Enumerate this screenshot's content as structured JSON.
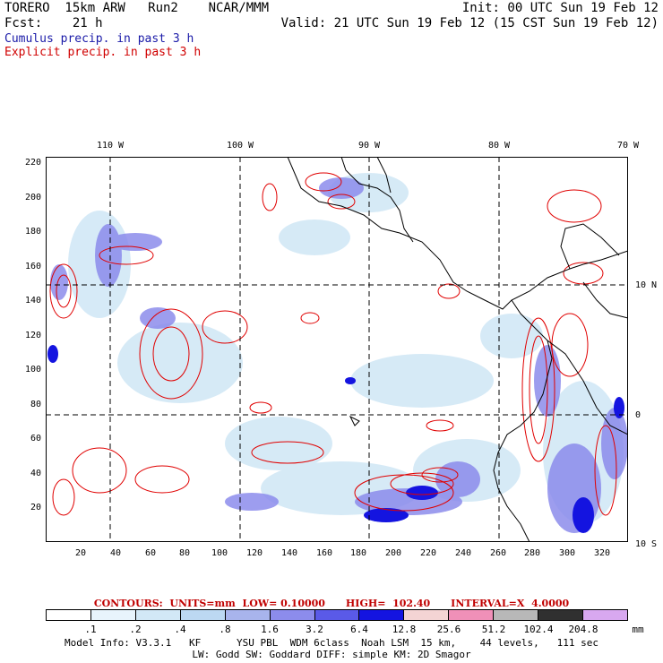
{
  "header": {
    "line1_left": "TORERO  15km ARW   Run2    NCAR/MMM",
    "line1_right": "Init: 00 UTC Sun 19 Feb 12",
    "line2_left": "Fcst:    21 h",
    "line2_right": "Valid: 21 UTC Sun 19 Feb 12 (15 CST Sun 19 Feb 12)",
    "field_cumulus": "Cumulus precip. in past 3 h",
    "field_explicit": "Explicit precip. in past 3 h"
  },
  "map": {
    "lon_labels": [
      "110 W",
      "100 W",
      "90 W",
      "80 W",
      "70 W"
    ],
    "lat_labels": [
      "10 N",
      "0",
      "10 S"
    ],
    "y_ticks": [
      "220",
      "200",
      "180",
      "160",
      "140",
      "120",
      "100",
      "80",
      "60",
      "40",
      "20"
    ],
    "x_ticks": [
      "20",
      "40",
      "60",
      "80",
      "100",
      "120",
      "140",
      "160",
      "180",
      "200",
      "220",
      "240",
      "260",
      "280",
      "300",
      "320"
    ],
    "x_range": [
      0,
      335
    ],
    "y_range": [
      0,
      225
    ]
  },
  "contour_info": {
    "text": "CONTOURS:  UNITS=mm  LOW= 0.10000      HIGH=  102.40      INTERVAL=X  4.0000"
  },
  "legend": {
    "colors": [
      "#ffffff",
      "#e8f4fc",
      "#d2e8f6",
      "#bcd8f2",
      "#a8b4ec",
      "#8c8cec",
      "#5a5ae8",
      "#1414e0",
      "#f4d4d4",
      "#f090b8",
      "#b8b8b8",
      "#303030",
      "#d8a8f0"
    ],
    "labels": [
      ".1",
      ".2",
      ".4",
      ".8",
      "1.6",
      "3.2",
      "6.4",
      "12.8",
      "25.6",
      "51.2",
      "102.4",
      "204.8"
    ],
    "unit": "mm"
  },
  "footer": {
    "line1": "Model Info: V3.3.1   KF      YSU PBL  WDM 6class  Noah LSM  15 km,    44 levels,   111 sec",
    "line2": "LW: Godd SW: Goddard DIFF: simple KM: 2D Smagor"
  }
}
